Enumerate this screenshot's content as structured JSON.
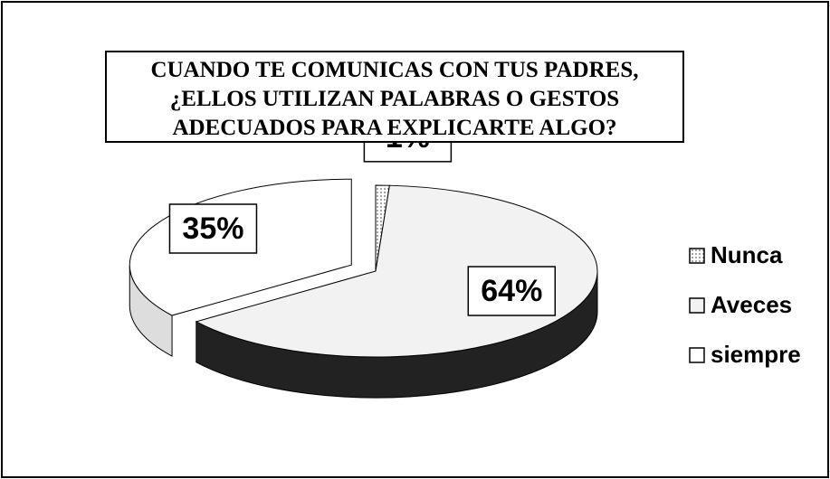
{
  "chart_data": {
    "type": "pie",
    "title": "CUANDO TE COMUNICAS CON TUS PADRES, ¿ELLOS UTILIZAN PALABRAS O GESTOS ADECUADOS PARA EXPLICARTE ALGO?",
    "categories": [
      "Nunca",
      "Aveces",
      "siempre"
    ],
    "values": [
      1,
      64,
      35
    ],
    "value_labels": [
      "1%",
      "64%",
      "35%"
    ],
    "colors": [
      "#bdbdbd",
      "#f2f2f2",
      "#ffffff"
    ],
    "legend": "right"
  }
}
